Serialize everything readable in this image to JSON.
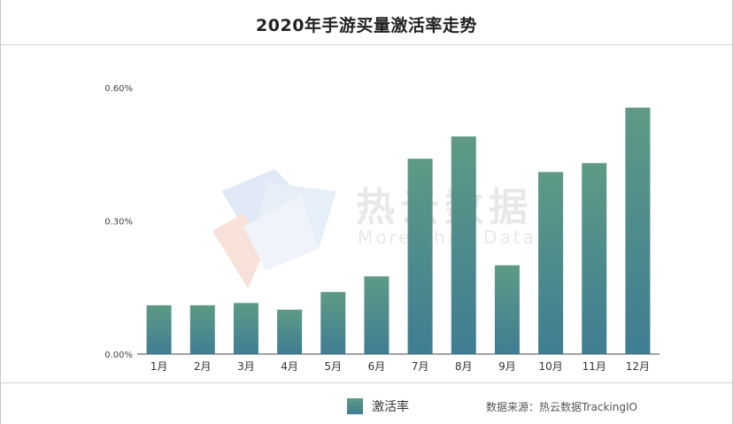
{
  "title": "2020年手游买量激活率走势",
  "watermark": {
    "brand_cn": "热云数据",
    "tagline": "More Than Data"
  },
  "legend": {
    "label": "激活率"
  },
  "source": "数据来源：热云数据TrackingIO",
  "colors": {
    "bar_top": "#5e9a85",
    "bar_bottom": "#3f7d93"
  },
  "chart_data": {
    "type": "bar",
    "title": "2020年手游买量激活率走势",
    "xlabel": "",
    "ylabel": "",
    "categories": [
      "1月",
      "2月",
      "3月",
      "4月",
      "5月",
      "6月",
      "7月",
      "8月",
      "9月",
      "10月",
      "11月",
      "12月"
    ],
    "series": [
      {
        "name": "激活率",
        "values": [
          0.11,
          0.11,
          0.115,
          0.1,
          0.14,
          0.175,
          0.44,
          0.49,
          0.2,
          0.41,
          0.43,
          0.555
        ]
      }
    ],
    "ylim": [
      0,
      0.6
    ],
    "yticks": [
      0,
      0.3,
      0.6
    ],
    "ytick_labels": [
      "0.00%",
      "0.30%",
      "0.60%"
    ],
    "unit": "%",
    "grid": false,
    "legend_position": "bottom"
  }
}
